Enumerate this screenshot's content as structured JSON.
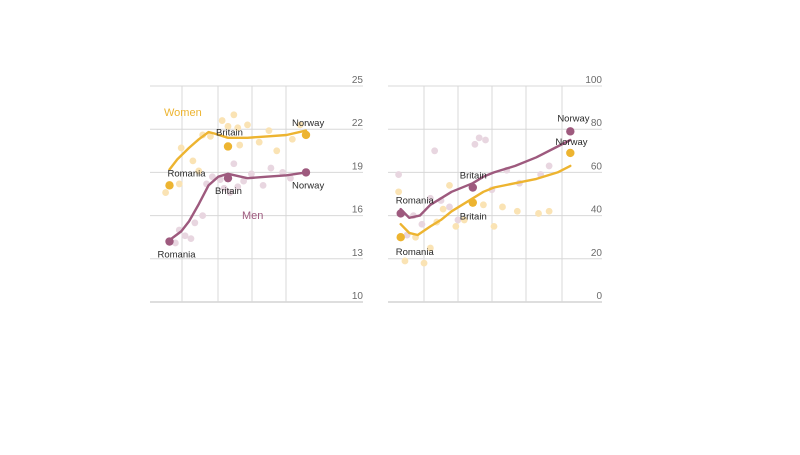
{
  "colors": {
    "women": "#EDB430",
    "men": "#9E5A7E",
    "women_scatter": "#FAE3B4",
    "men_scatter": "#E8D6E0",
    "grid": "#d8d8d8",
    "axis": "#bdbdbd"
  },
  "chart_data": [
    {
      "type": "scatter",
      "title": "",
      "xlabel": "",
      "ylabel": "",
      "ylim": [
        10,
        25
      ],
      "yticks": [
        10,
        13,
        16,
        19,
        22,
        25
      ],
      "xlim": [
        0,
        10
      ],
      "grid": true,
      "series_labels": [
        {
          "name": "Women",
          "color": "women"
        },
        {
          "name": "Men",
          "color": "men"
        }
      ],
      "series": [
        {
          "name": "Women",
          "color": "women",
          "trend": [
            [
              1.0,
              19.2
            ],
            [
              1.4,
              19.9
            ],
            [
              2.0,
              20.7
            ],
            [
              2.5,
              21.3
            ],
            [
              3.0,
              21.8
            ],
            [
              3.3,
              21.7
            ],
            [
              4.0,
              21.4
            ],
            [
              5.0,
              21.4
            ],
            [
              6.0,
              21.5
            ],
            [
              7.0,
              21.6
            ],
            [
              8.0,
              21.9
            ]
          ],
          "highlights": [
            {
              "label": "Romania",
              "x": 1.0,
              "y": 18.1
            },
            {
              "label": "Britain",
              "x": 4.0,
              "y": 20.8
            },
            {
              "label": "Norway",
              "x": 8.0,
              "y": 21.6
            }
          ],
          "scatter": [
            [
              0.8,
              17.6
            ],
            [
              1.5,
              18.2
            ],
            [
              1.6,
              20.7
            ],
            [
              2.2,
              19.8
            ],
            [
              2.5,
              19.1
            ],
            [
              2.7,
              21.6
            ],
            [
              3.1,
              21.5
            ],
            [
              3.7,
              22.6
            ],
            [
              4.0,
              22.2
            ],
            [
              4.3,
              23.0
            ],
            [
              4.5,
              22.1
            ],
            [
              4.6,
              20.9
            ],
            [
              5.0,
              22.3
            ],
            [
              5.6,
              21.1
            ],
            [
              6.1,
              21.9
            ],
            [
              6.5,
              20.5
            ],
            [
              7.3,
              21.3
            ],
            [
              7.7,
              22.3
            ]
          ]
        },
        {
          "name": "Men",
          "color": "men",
          "trend": [
            [
              1.0,
              14.3
            ],
            [
              1.6,
              14.9
            ],
            [
              2.0,
              15.6
            ],
            [
              2.5,
              16.8
            ],
            [
              3.0,
              18.1
            ],
            [
              3.5,
              18.7
            ],
            [
              4.0,
              18.9
            ],
            [
              5.0,
              18.6
            ],
            [
              6.0,
              18.7
            ],
            [
              7.0,
              18.8
            ],
            [
              8.0,
              19.0
            ]
          ],
          "highlights": [
            {
              "label": "Romania",
              "x": 1.0,
              "y": 14.2
            },
            {
              "label": "Britain",
              "x": 4.0,
              "y": 18.6
            },
            {
              "label": "Norway",
              "x": 8.0,
              "y": 19.0
            }
          ],
          "scatter": [
            [
              1.3,
              14.1
            ],
            [
              1.5,
              15.0
            ],
            [
              1.8,
              14.6
            ],
            [
              2.1,
              14.4
            ],
            [
              2.3,
              15.5
            ],
            [
              2.7,
              16.0
            ],
            [
              2.9,
              18.2
            ],
            [
              3.2,
              18.7
            ],
            [
              3.6,
              18.5
            ],
            [
              3.8,
              17.9
            ],
            [
              4.1,
              17.6
            ],
            [
              4.3,
              19.6
            ],
            [
              4.5,
              18.0
            ],
            [
              4.8,
              18.4
            ],
            [
              5.2,
              18.9
            ],
            [
              5.8,
              18.1
            ],
            [
              6.2,
              19.3
            ],
            [
              6.8,
              19.0
            ],
            [
              7.2,
              18.6
            ]
          ]
        }
      ]
    },
    {
      "type": "scatter",
      "title": "",
      "xlabel": "",
      "ylabel": "",
      "ylim": [
        0,
        100
      ],
      "yticks": [
        0,
        20,
        40,
        60,
        80,
        100
      ],
      "xlim": [
        0,
        10
      ],
      "grid": true,
      "series": [
        {
          "name": "",
          "color": "men",
          "trend": [
            [
              0.6,
              43
            ],
            [
              1.0,
              39
            ],
            [
              1.5,
              40
            ],
            [
              2.0,
              45
            ],
            [
              2.5,
              48
            ],
            [
              3.0,
              51
            ],
            [
              4.0,
              55
            ],
            [
              4.5,
              58
            ],
            [
              5.0,
              60
            ],
            [
              6.0,
              63
            ],
            [
              7.0,
              67
            ],
            [
              8.0,
              72
            ],
            [
              8.6,
              75
            ]
          ],
          "highlights": [
            {
              "label": "Romania",
              "x": 0.6,
              "y": 41
            },
            {
              "label": "Britain",
              "x": 4.0,
              "y": 53
            },
            {
              "label": "Norway",
              "x": 8.6,
              "y": 79
            }
          ],
          "scatter": [
            [
              0.5,
              59
            ],
            [
              0.9,
              31
            ],
            [
              1.2,
              40
            ],
            [
              1.6,
              36
            ],
            [
              2.0,
              48
            ],
            [
              2.2,
              70
            ],
            [
              2.5,
              47
            ],
            [
              2.9,
              44
            ],
            [
              3.3,
              38
            ],
            [
              4.1,
              73
            ],
            [
              4.3,
              76
            ],
            [
              4.6,
              75
            ],
            [
              4.9,
              52
            ],
            [
              5.6,
              61
            ],
            [
              6.2,
              55
            ],
            [
              7.2,
              59
            ],
            [
              7.6,
              63
            ]
          ]
        },
        {
          "name": "",
          "color": "women",
          "trend": [
            [
              0.6,
              36
            ],
            [
              1.0,
              32
            ],
            [
              1.4,
              31
            ],
            [
              2.0,
              35
            ],
            [
              2.5,
              38
            ],
            [
              3.0,
              42
            ],
            [
              4.0,
              48
            ],
            [
              4.5,
              51
            ],
            [
              5.0,
              53
            ],
            [
              6.0,
              55
            ],
            [
              7.0,
              57
            ],
            [
              8.0,
              60
            ],
            [
              8.6,
              63
            ]
          ],
          "highlights": [
            {
              "label": "Romania",
              "x": 0.6,
              "y": 30
            },
            {
              "label": "Britain",
              "x": 4.0,
              "y": 46
            },
            {
              "label": "Norway",
              "x": 8.6,
              "y": 69
            }
          ],
          "scatter": [
            [
              0.5,
              51
            ],
            [
              0.8,
              19
            ],
            [
              1.3,
              30
            ],
            [
              1.7,
              18
            ],
            [
              2.0,
              25
            ],
            [
              2.3,
              37
            ],
            [
              2.6,
              43
            ],
            [
              2.9,
              54
            ],
            [
              3.2,
              35
            ],
            [
              3.6,
              38
            ],
            [
              4.5,
              45
            ],
            [
              5.0,
              35
            ],
            [
              5.4,
              44
            ],
            [
              6.1,
              42
            ],
            [
              7.1,
              41
            ],
            [
              7.6,
              42
            ]
          ]
        }
      ]
    }
  ]
}
